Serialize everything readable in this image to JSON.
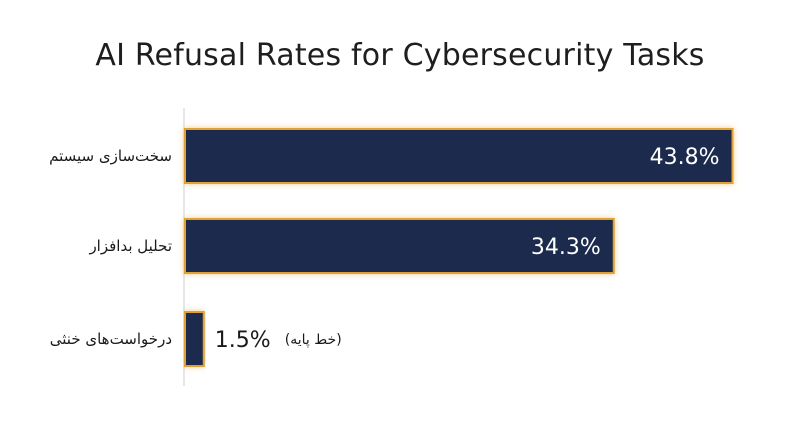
{
  "chart_data": {
    "type": "bar",
    "orientation": "horizontal",
    "title": "AI Refusal Rates for Cybersecurity Tasks",
    "categories": [
      "سخت‌سازی سیستم",
      "تحلیل بدافزار",
      "درخواست‌های خنثی"
    ],
    "values": [
      43.8,
      34.3,
      1.5
    ],
    "value_labels": [
      "43.8%",
      "34.3%",
      "1.5%"
    ],
    "annotations": [
      "",
      "",
      "(خط پایه)"
    ],
    "xlim": [
      0,
      44
    ],
    "grid": false,
    "legend": "none",
    "colors": {
      "bar_fill": "#1b2a4e",
      "bar_border": "#e0a030",
      "axis": "#cfcfcf"
    }
  }
}
